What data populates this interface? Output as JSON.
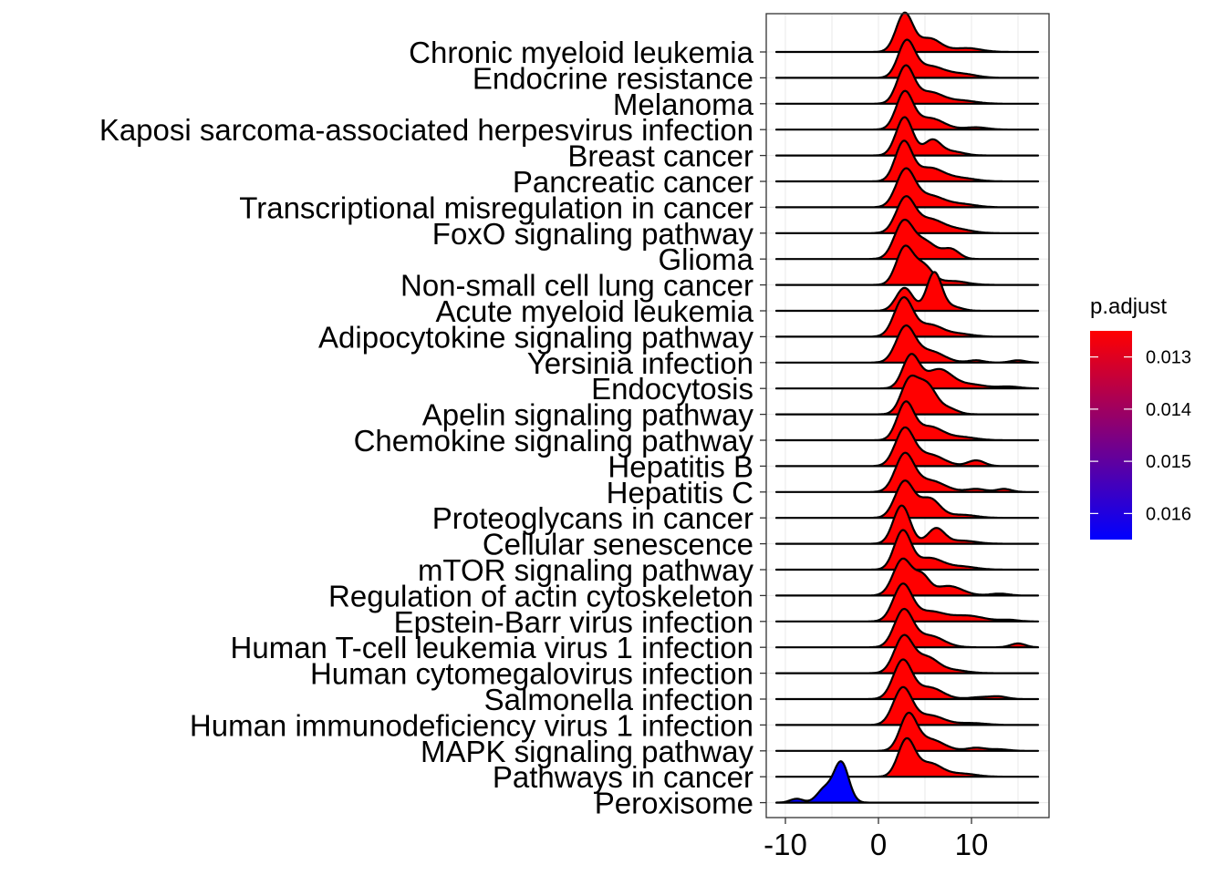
{
  "chart_data": {
    "type": "ridgeline",
    "title": "",
    "xlabel": "",
    "ylabel": "",
    "xlim": [
      -11,
      19
    ],
    "x_ticks": [
      -10,
      0,
      10
    ],
    "x_tick_labels": [
      "-10",
      "0",
      "10"
    ],
    "grid": true,
    "legend": {
      "title": "p.adjust",
      "placement": "right",
      "type": "colorbar",
      "range": [
        0.0125,
        0.0165
      ],
      "low_color": "#FF0000",
      "high_color": "#0000FF",
      "ticks": [
        0.013,
        0.014,
        0.015,
        0.016
      ],
      "tick_labels": [
        "0.013",
        "0.014",
        "0.015",
        "0.016"
      ]
    },
    "categories": [
      "Chronic myeloid leukemia",
      "Endocrine resistance",
      "Melanoma",
      "Kaposi sarcoma-associated herpesvirus infection",
      "Breast cancer",
      "Pancreatic cancer",
      "Transcriptional misregulation in cancer",
      "FoxO signaling pathway",
      "Glioma",
      "Non-small cell lung cancer",
      "Acute myeloid leukemia",
      "Adipocytokine signaling pathway",
      "Yersinia infection",
      "Endocytosis",
      "Apelin signaling pathway",
      "Chemokine signaling pathway",
      "Hepatitis B",
      "Hepatitis C",
      "Proteoglycans in cancer",
      "Cellular senescence",
      "mTOR signaling pathway",
      "Regulation of actin cytoskeleton",
      "Epstein-Barr virus infection",
      "Human T-cell leukemia virus 1 infection",
      "Human cytomegalovirus infection",
      "Salmonella infection",
      "Human immunodeficiency virus 1 infection",
      "MAPK signaling pathway",
      "Pathways in cancer",
      "Peroxisome"
    ],
    "series": [
      {
        "p_adjust": 0.0125,
        "peaks": [
          [
            2.8,
            1.0,
            0.9
          ],
          [
            5.5,
            0.35,
            1.2
          ],
          [
            9.5,
            0.1,
            1.5
          ]
        ]
      },
      {
        "p_adjust": 0.0125,
        "peaks": [
          [
            3.0,
            0.92,
            0.9
          ],
          [
            5.5,
            0.3,
            1.5
          ],
          [
            9.0,
            0.1,
            1.5
          ]
        ]
      },
      {
        "p_adjust": 0.0125,
        "peaks": [
          [
            2.9,
            0.95,
            0.9
          ],
          [
            5.5,
            0.3,
            1.4
          ],
          [
            9.0,
            0.08,
            1.5
          ]
        ]
      },
      {
        "p_adjust": 0.0125,
        "peaks": [
          [
            2.8,
            0.95,
            0.9
          ],
          [
            5.5,
            0.3,
            1.5
          ],
          [
            10.5,
            0.06,
            1.2
          ]
        ]
      },
      {
        "p_adjust": 0.0125,
        "peaks": [
          [
            2.8,
            1.0,
            0.9
          ],
          [
            5.8,
            0.4,
            0.9
          ],
          [
            8.0,
            0.1,
            1.2
          ]
        ]
      },
      {
        "p_adjust": 0.0125,
        "peaks": [
          [
            2.7,
            1.0,
            0.9
          ],
          [
            5.5,
            0.35,
            1.5
          ],
          [
            9.0,
            0.08,
            1.5
          ]
        ]
      },
      {
        "p_adjust": 0.0125,
        "peaks": [
          [
            2.9,
            0.95,
            1.0
          ],
          [
            5.5,
            0.3,
            1.5
          ],
          [
            9.0,
            0.08,
            1.5
          ]
        ]
      },
      {
        "p_adjust": 0.0125,
        "peaks": [
          [
            2.9,
            0.9,
            1.0
          ],
          [
            5.5,
            0.35,
            1.4
          ],
          [
            8.5,
            0.1,
            1.5
          ]
        ]
      },
      {
        "p_adjust": 0.0125,
        "peaks": [
          [
            2.7,
            0.95,
            1.0
          ],
          [
            5.0,
            0.45,
            1.2
          ],
          [
            7.8,
            0.25,
            0.9
          ]
        ]
      },
      {
        "p_adjust": 0.0125,
        "peaks": [
          [
            2.8,
            0.95,
            0.9
          ],
          [
            4.8,
            0.5,
            1.0
          ],
          [
            8.0,
            0.1,
            1.5
          ]
        ]
      },
      {
        "p_adjust": 0.0125,
        "peaks": [
          [
            2.8,
            0.6,
            0.9
          ],
          [
            6.0,
            1.0,
            0.8
          ],
          [
            8.0,
            0.1,
            1.0
          ]
        ]
      },
      {
        "p_adjust": 0.0125,
        "peaks": [
          [
            2.7,
            1.0,
            1.0
          ],
          [
            5.5,
            0.3,
            1.3
          ],
          [
            8.5,
            0.08,
            1.5
          ]
        ]
      },
      {
        "p_adjust": 0.0125,
        "peaks": [
          [
            2.9,
            0.9,
            1.0
          ],
          [
            5.5,
            0.3,
            1.5
          ],
          [
            10.5,
            0.06,
            0.8
          ],
          [
            15.0,
            0.06,
            0.8
          ]
        ]
      },
      {
        "p_adjust": 0.0125,
        "peaks": [
          [
            3.5,
            0.85,
            0.9
          ],
          [
            6.5,
            0.5,
            1.4
          ],
          [
            10.0,
            0.1,
            1.5
          ],
          [
            14.0,
            0.05,
            1.2
          ]
        ]
      },
      {
        "p_adjust": 0.0125,
        "peaks": [
          [
            3.3,
            0.85,
            0.9
          ],
          [
            5.2,
            0.75,
            1.0
          ],
          [
            7.5,
            0.15,
            1.0
          ]
        ]
      },
      {
        "p_adjust": 0.0125,
        "peaks": [
          [
            2.9,
            0.95,
            0.9
          ],
          [
            5.5,
            0.35,
            1.4
          ],
          [
            9.0,
            0.08,
            1.5
          ]
        ]
      },
      {
        "p_adjust": 0.0125,
        "peaks": [
          [
            2.8,
            0.95,
            1.0
          ],
          [
            5.5,
            0.3,
            1.5
          ],
          [
            10.5,
            0.15,
            0.9
          ]
        ]
      },
      {
        "p_adjust": 0.0125,
        "peaks": [
          [
            2.8,
            0.95,
            1.0
          ],
          [
            5.5,
            0.3,
            1.6
          ],
          [
            10.5,
            0.08,
            1.0
          ],
          [
            13.5,
            0.08,
            0.8
          ]
        ]
      },
      {
        "p_adjust": 0.0125,
        "peaks": [
          [
            2.8,
            0.95,
            1.0
          ],
          [
            5.5,
            0.5,
            1.1
          ],
          [
            9.0,
            0.08,
            1.5
          ]
        ]
      },
      {
        "p_adjust": 0.0125,
        "peaks": [
          [
            2.5,
            1.0,
            0.9
          ],
          [
            6.2,
            0.4,
            0.9
          ],
          [
            9.0,
            0.08,
            1.5
          ]
        ]
      },
      {
        "p_adjust": 0.0125,
        "peaks": [
          [
            2.6,
            1.0,
            0.9
          ],
          [
            5.5,
            0.3,
            1.4
          ],
          [
            9.0,
            0.08,
            1.5
          ]
        ]
      },
      {
        "p_adjust": 0.0125,
        "peaks": [
          [
            2.6,
            0.95,
            1.0
          ],
          [
            4.7,
            0.45,
            0.8
          ],
          [
            7.5,
            0.25,
            1.5
          ],
          [
            13.0,
            0.05,
            1.0
          ]
        ]
      },
      {
        "p_adjust": 0.0125,
        "peaks": [
          [
            2.6,
            0.95,
            1.0
          ],
          [
            5.5,
            0.25,
            1.5
          ],
          [
            9.5,
            0.15,
            1.8
          ],
          [
            14.0,
            0.04,
            1.0
          ]
        ]
      },
      {
        "p_adjust": 0.0125,
        "peaks": [
          [
            2.7,
            0.95,
            1.0
          ],
          [
            5.5,
            0.3,
            1.5
          ],
          [
            15.0,
            0.1,
            0.8
          ]
        ]
      },
      {
        "p_adjust": 0.0125,
        "peaks": [
          [
            2.7,
            0.95,
            1.0
          ],
          [
            5.2,
            0.4,
            1.2
          ],
          [
            8.0,
            0.08,
            1.5
          ]
        ]
      },
      {
        "p_adjust": 0.0125,
        "peaks": [
          [
            2.6,
            1.0,
            1.0
          ],
          [
            5.5,
            0.3,
            1.4
          ],
          [
            11.0,
            0.05,
            1.2
          ],
          [
            13.0,
            0.06,
            0.9
          ]
        ]
      },
      {
        "p_adjust": 0.0125,
        "peaks": [
          [
            2.6,
            0.95,
            1.0
          ],
          [
            5.5,
            0.25,
            1.5
          ],
          [
            10.0,
            0.05,
            1.5
          ]
        ]
      },
      {
        "p_adjust": 0.0125,
        "peaks": [
          [
            3.2,
            0.9,
            0.9
          ],
          [
            5.5,
            0.3,
            1.5
          ],
          [
            10.5,
            0.08,
            1.0
          ],
          [
            13.0,
            0.04,
            1.0
          ]
        ]
      },
      {
        "p_adjust": 0.0125,
        "peaks": [
          [
            3.0,
            0.95,
            0.9
          ],
          [
            5.5,
            0.35,
            1.3
          ],
          [
            9.0,
            0.08,
            1.5
          ]
        ]
      },
      {
        "p_adjust": 0.0165,
        "peaks": [
          [
            -4.0,
            1.05,
            0.8
          ],
          [
            -5.8,
            0.35,
            0.8
          ],
          [
            -8.8,
            0.1,
            0.7
          ]
        ]
      }
    ]
  }
}
